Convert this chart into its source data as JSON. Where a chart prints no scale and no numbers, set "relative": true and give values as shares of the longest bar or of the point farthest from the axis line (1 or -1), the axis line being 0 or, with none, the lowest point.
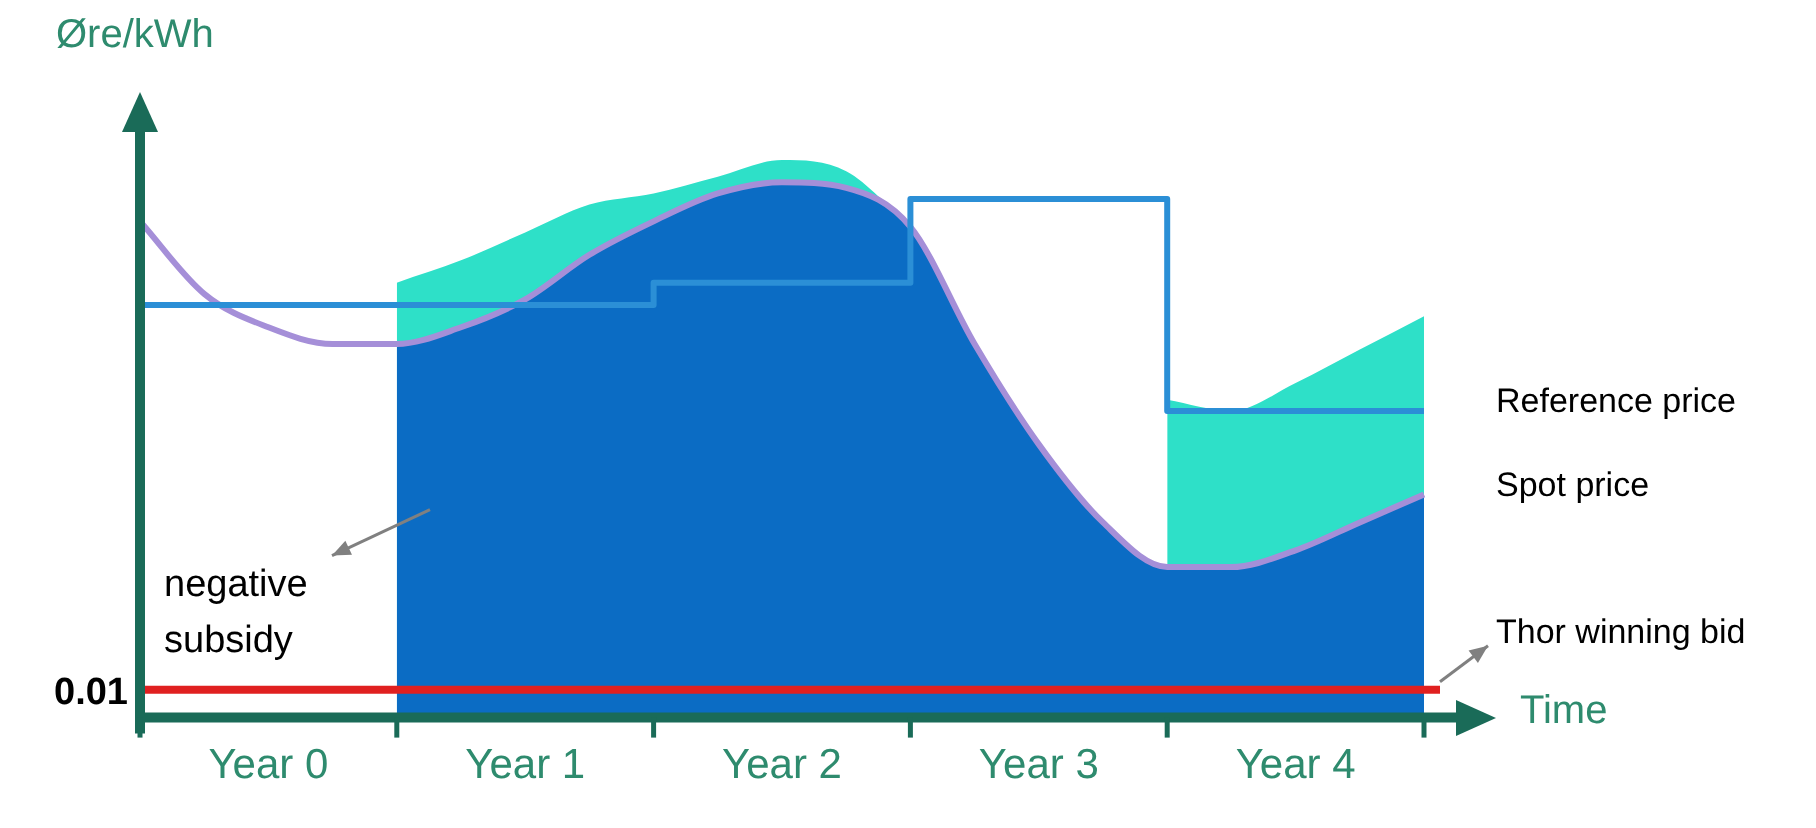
{
  "chart_data": {
    "type": "line",
    "relative": true,
    "ylabel": "Øre/kWh",
    "xlabel": "Time",
    "categories": [
      null,
      null,
      "Year 0",
      null,
      null,
      null,
      "Year 1",
      null,
      null,
      null,
      "Year 2",
      null,
      null,
      null,
      "Year 3",
      null,
      null,
      null,
      "Year 4",
      null,
      null
    ],
    "series": [
      {
        "type": "area",
        "color": "#2ee0c8",
        "values": [
          null,
          null,
          null,
          null,
          0.78,
          0.82,
          0.87,
          0.92,
          0.94,
          0.97,
          1,
          0.98,
          0.88,
          null,
          null,
          null,
          0.57,
          0.55,
          0.6,
          0.66,
          0.72
        ]
      },
      {
        "type": "area",
        "color": "#0b6cc4",
        "values": [
          null,
          null,
          null,
          null,
          0.67,
          0.7,
          0.75,
          0.83,
          0.89,
          0.94,
          0.96,
          0.95,
          0.88,
          0.67,
          0.49,
          0.35,
          0.27,
          0.27,
          0.3,
          0.35,
          0.4
        ]
      },
      {
        "type": "line",
        "name": "Spot price",
        "color": "#a58fd8",
        "values": [
          0.89,
          0.76,
          0.7,
          0.67,
          0.67,
          0.7,
          0.75,
          0.83,
          0.89,
          0.94,
          0.96,
          0.95,
          0.88,
          0.67,
          0.49,
          0.35,
          0.27,
          0.27,
          0.3,
          0.35,
          0.4
        ]
      },
      {
        "type": "step",
        "name": "Reference price",
        "color": "#2b8fd6",
        "values": [
          0.74,
          0.74,
          0.74,
          0.74,
          0.74,
          0.74,
          0.74,
          0.74,
          0.78,
          0.78,
          0.78,
          0.78,
          0.93,
          0.93,
          0.93,
          0.93,
          0.55,
          0.55,
          0.55,
          0.55,
          0.55
        ]
      }
    ],
    "ref_lines": [
      {
        "axis": "y",
        "value": 0.05,
        "label": "Thor winning bid",
        "color": "#e02020"
      }
    ],
    "annotations": [
      "0.01",
      "negative subsidy"
    ],
    "legend": false
  }
}
